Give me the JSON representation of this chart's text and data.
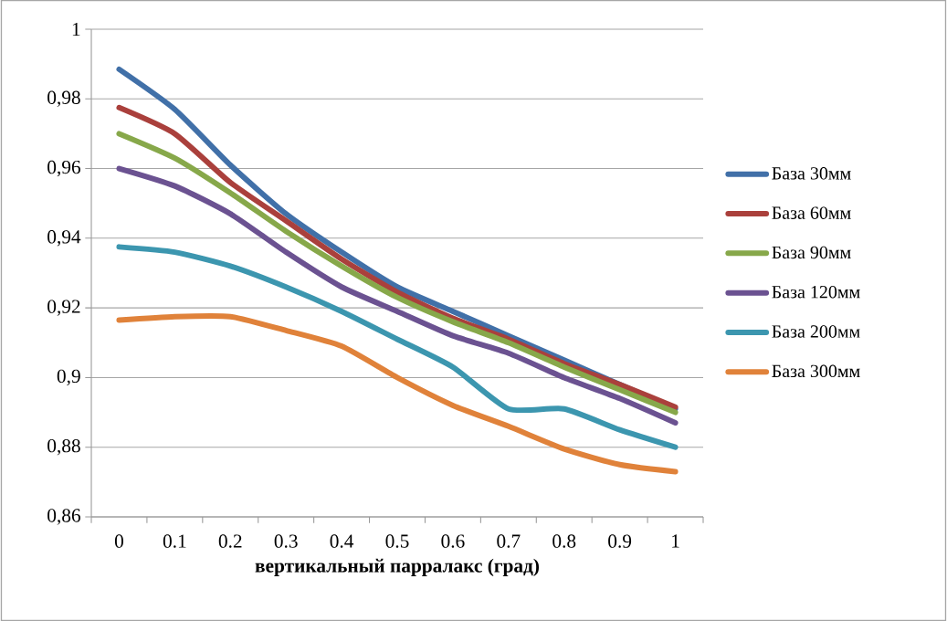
{
  "chart_data": {
    "type": "line",
    "xlabel": "вертикальный парралакс (град)",
    "categories": [
      "0",
      "0.1",
      "0.2",
      "0.3",
      "0.4",
      "0.5",
      "0.6",
      "0.7",
      "0.8",
      "0.9",
      "1"
    ],
    "series": [
      {
        "name": "База 30мм",
        "color": "#4170a8",
        "values": [
          0.9885,
          0.977,
          0.961,
          0.947,
          0.936,
          0.926,
          0.919,
          0.912,
          0.905,
          0.898,
          0.891
        ]
      },
      {
        "name": "База 60мм",
        "color": "#aa403c",
        "values": [
          0.9775,
          0.97,
          0.956,
          0.945,
          0.934,
          0.9245,
          0.917,
          0.911,
          0.904,
          0.898,
          0.8915
        ]
      },
      {
        "name": "База 90мм",
        "color": "#87a84a",
        "values": [
          0.97,
          0.963,
          0.953,
          0.942,
          0.932,
          0.923,
          0.916,
          0.91,
          0.903,
          0.8965,
          0.89
        ]
      },
      {
        "name": "База 120мм",
        "color": "#6b5291",
        "values": [
          0.96,
          0.955,
          0.947,
          0.936,
          0.926,
          0.919,
          0.912,
          0.907,
          0.9,
          0.894,
          0.887
        ]
      },
      {
        "name": "База 200мм",
        "color": "#3c96af",
        "values": [
          0.9375,
          0.936,
          0.932,
          0.926,
          0.919,
          0.911,
          0.903,
          0.891,
          0.891,
          0.885,
          0.88
        ]
      },
      {
        "name": "База 300мм",
        "color": "#e0823a",
        "values": [
          0.9165,
          0.9175,
          0.9175,
          0.9135,
          0.909,
          0.9,
          0.892,
          0.886,
          0.8795,
          0.875,
          0.873
        ]
      }
    ],
    "ylim": [
      0.86,
      1
    ],
    "yticks": [
      {
        "value": 0.86,
        "label": "0,86"
      },
      {
        "value": 0.88,
        "label": "0,88"
      },
      {
        "value": 0.9,
        "label": "0,9"
      },
      {
        "value": 0.92,
        "label": "0,92"
      },
      {
        "value": 0.94,
        "label": "0,94"
      },
      {
        "value": 0.96,
        "label": "0,96"
      },
      {
        "value": 0.98,
        "label": "0,98"
      },
      {
        "value": 1,
        "label": "1"
      }
    ],
    "grid": "y",
    "legend": "right",
    "marker": "none",
    "line_style": "solid"
  }
}
